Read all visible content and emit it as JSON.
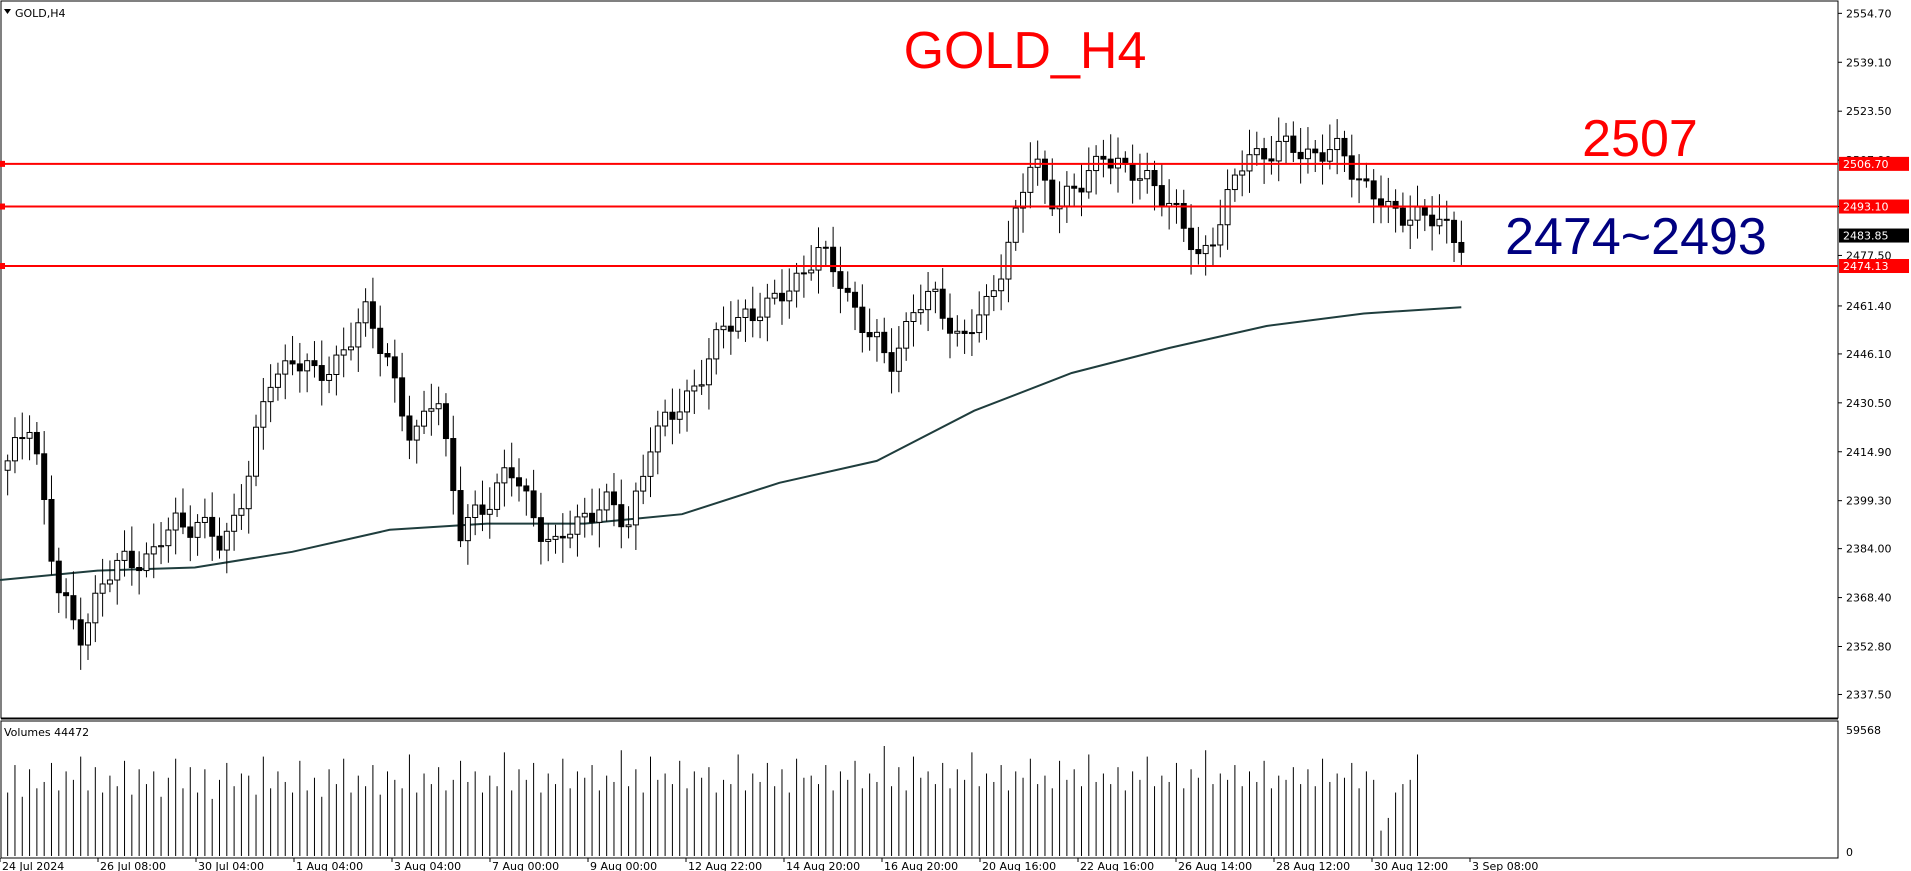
{
  "window": {
    "symbol_label": "GOLD,H4",
    "volumes_label": "Volumes 44472"
  },
  "annotations": {
    "title": "GOLD_H4",
    "level_label": "2507",
    "range_label": "2474~2493"
  },
  "colors": {
    "background": "#ffffff",
    "candle_outline": "#000000",
    "bear_fill": "#000000",
    "bull_fill": "#ffffff",
    "ma_line": "#1f3d3d",
    "level_lines": "#ff0000",
    "title_color": "#ff0000",
    "range_color": "#000080",
    "current_price_tag": "#000000"
  },
  "chart_data": {
    "type": "candlestick",
    "timeframe": "H4",
    "symbol": "GOLD",
    "ylim": [
      2330,
      2558
    ],
    "y_tick_labels": [
      "2554.70",
      "2539.10",
      "2523.50",
      "2507.90",
      "2493.10",
      "2477.50",
      "2461.40",
      "2446.10",
      "2430.50",
      "2414.90",
      "2399.30",
      "2384.00",
      "2368.40",
      "2352.80",
      "2337.50"
    ],
    "x_tick_labels": [
      "24 Jul 2024",
      "26 Jul 08:00",
      "30 Jul 04:00",
      "1 Aug 04:00",
      "3 Aug 04:00",
      "7 Aug 00:00",
      "9 Aug 00:00",
      "12 Aug 22:00",
      "14 Aug 20:00",
      "16 Aug 20:00",
      "20 Aug 16:00",
      "22 Aug 16:00",
      "26 Aug 14:00",
      "28 Aug 12:00",
      "30 Aug 12:00",
      "3 Sep 08:00"
    ],
    "levels": [
      {
        "label": "2506.70",
        "value": 2506.7
      },
      {
        "label": "2493.10",
        "value": 2493.1
      },
      {
        "label": "2474.13",
        "value": 2474.13
      }
    ],
    "current_price": {
      "label": "2483.85",
      "value": 2483.85
    },
    "close_anchors": [
      2410,
      2427,
      2372,
      2357,
      2372,
      2382,
      2380,
      2393,
      2392,
      2384,
      2405,
      2437,
      2446,
      2437,
      2447,
      2458,
      2445,
      2415,
      2437,
      2388,
      2398,
      2410,
      2395,
      2385,
      2392,
      2401,
      2389,
      2420,
      2426,
      2439,
      2453,
      2460,
      2460,
      2470,
      2478,
      2470,
      2453,
      2443,
      2460,
      2464,
      2450,
      2459,
      2482,
      2508,
      2495,
      2498,
      2512,
      2502,
      2503,
      2490,
      2477,
      2490,
      2511,
      2510,
      2512,
      2510,
      2510,
      2500,
      2490,
      2492,
      2487,
      2483
    ],
    "moving_average_anchors": [
      2374,
      2377,
      2378,
      2383,
      2390,
      2392,
      2392,
      2395,
      2405,
      2412,
      2428,
      2440,
      2448,
      2455,
      2459,
      2461
    ],
    "volumes": {
      "max_label": "59568",
      "min_label": "0",
      "max": 59568,
      "values": [
        30000,
        43000,
        28000,
        41000,
        32000,
        35000,
        44000,
        31000,
        40000,
        36000,
        47000,
        31000,
        42000,
        30000,
        38000,
        33000,
        45000,
        29000,
        41000,
        34000,
        40000,
        28000,
        37000,
        46000,
        32000,
        42000,
        30000,
        41000,
        27000,
        36000,
        44000,
        33000,
        39000,
        38000,
        29000,
        47000,
        32000,
        40000,
        35000,
        30000,
        45000,
        31000,
        37000,
        28000,
        41000,
        34000,
        46000,
        30000,
        38000,
        33000,
        43000,
        29000,
        40000,
        36000,
        32000,
        48000,
        30000,
        39000,
        34000,
        42000,
        31000,
        36000,
        45000,
        35000,
        40000,
        30000,
        38000,
        33000,
        49000,
        31000,
        41000,
        36000,
        44000,
        30000,
        39000,
        34000,
        46000,
        32000,
        40000,
        37000,
        43000,
        31000,
        38000,
        35000,
        50000,
        33000,
        41000,
        30000,
        47000,
        36000,
        39000,
        34000,
        45000,
        32000,
        40000,
        37000,
        42000,
        30000,
        36000,
        34000,
        48000,
        31000,
        39000,
        35000,
        44000,
        33000,
        41000,
        30000,
        46000,
        37000,
        38000,
        34000,
        43000,
        31000,
        40000,
        36000,
        45000,
        32000,
        39000,
        35000,
        52000,
        33000,
        42000,
        31000,
        47000,
        37000,
        40000,
        34000,
        44000,
        32000,
        41000,
        36000,
        49000,
        33000,
        39000,
        35000,
        43000,
        31000,
        40000,
        37000,
        46000,
        34000,
        38000,
        32000,
        45000,
        36000,
        41000,
        33000,
        48000,
        35000,
        39000,
        34000,
        42000,
        31000,
        40000,
        36000,
        47000,
        33000,
        38000,
        35000,
        44000,
        32000,
        41000,
        37000,
        50000,
        34000,
        39000,
        36000,
        43000,
        33000,
        40000,
        35000,
        45000,
        32000,
        38000,
        36000,
        42000,
        34000,
        41000,
        33000,
        46000,
        35000,
        39000,
        37000,
        44000,
        32000,
        40000,
        36000,
        12000,
        18000,
        30000,
        34000,
        36000,
        48000
      ]
    }
  }
}
